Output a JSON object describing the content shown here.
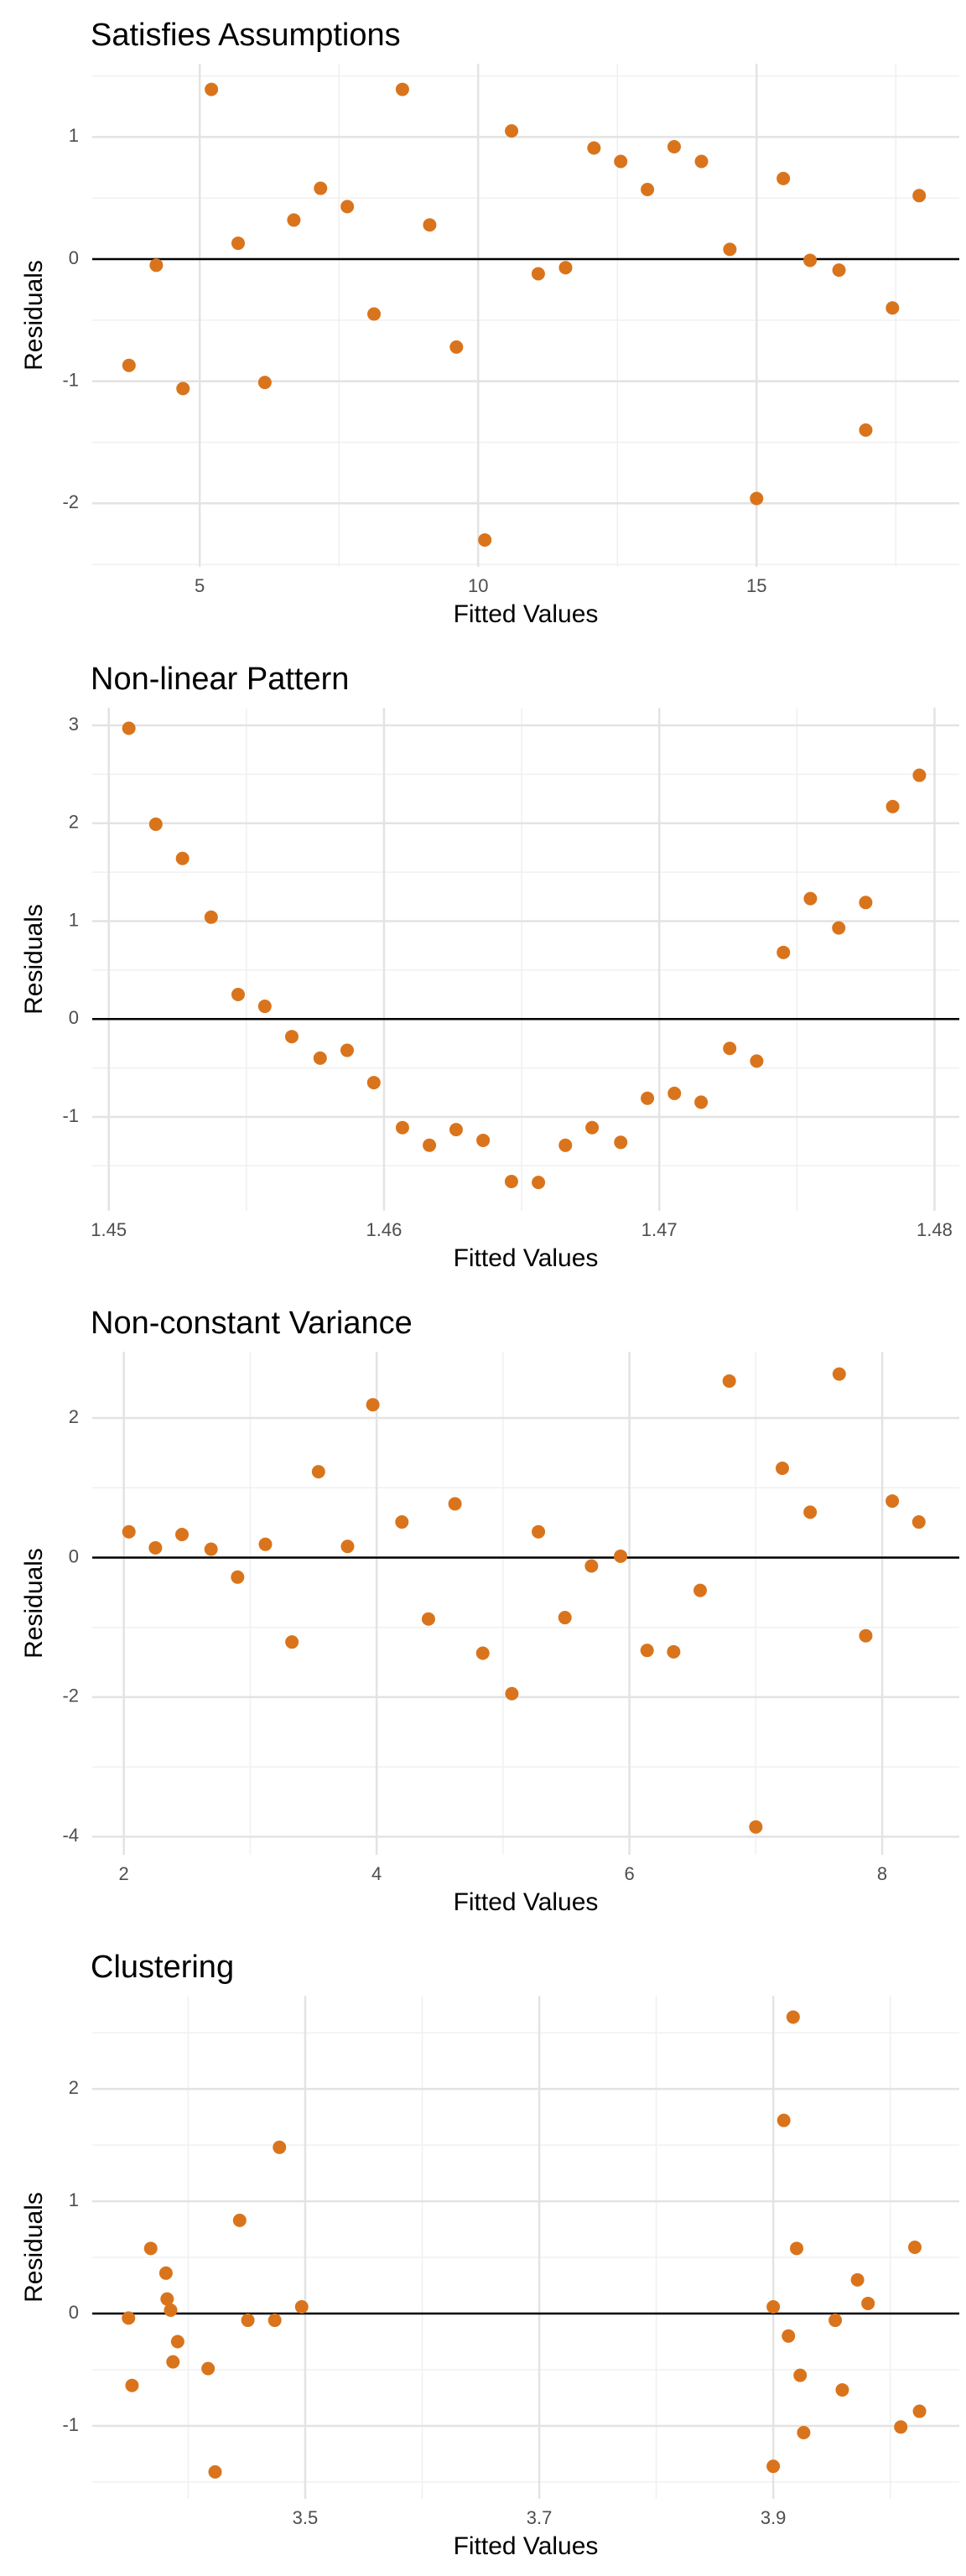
{
  "chart_data": [
    {
      "type": "scatter",
      "title": "Satisfies Assumptions",
      "x_label": "Fitted Values",
      "y_label": "Residuals",
      "color": "#d9741c",
      "grid": true,
      "hline": 0,
      "x": [
        3.73,
        4.22,
        4.7,
        5.21,
        5.69,
        6.17,
        6.69,
        7.17,
        7.65,
        8.13,
        8.64,
        9.13,
        9.61,
        10.12,
        10.6,
        11.08,
        11.57,
        12.08,
        12.56,
        13.04,
        13.52,
        14.01,
        14.52,
        15.0,
        15.48,
        15.96,
        16.48,
        16.96,
        17.44,
        17.92
      ],
      "values": [
        -0.87,
        -0.05,
        -1.06,
        1.39,
        0.13,
        -1.01,
        0.32,
        0.58,
        0.43,
        -0.45,
        1.39,
        0.28,
        -0.72,
        -2.3,
        1.05,
        -0.12,
        -0.07,
        0.91,
        0.8,
        0.57,
        0.92,
        0.8,
        0.08,
        -1.96,
        0.66,
        -0.01,
        -0.09,
        -1.4,
        -0.4,
        0.52
      ],
      "xlim": [
        3.07,
        18.64
      ],
      "ylim": [
        -2.52,
        1.6
      ],
      "xticks": [
        5,
        10,
        15
      ],
      "yticks": [
        -2,
        -1,
        0,
        1
      ],
      "x_minor_ticks": [
        7.5,
        12.5,
        17.5
      ],
      "y_minor_ticks": [
        -2.5,
        -1.5,
        -0.5,
        0.5,
        1.5
      ]
    },
    {
      "type": "scatter",
      "title": "Non-linear Pattern",
      "x_label": "Fitted Values",
      "y_label": "Residuals",
      "color": "#d9741c",
      "grid": true,
      "hline": 0,
      "x": [
        1.45073,
        1.45171,
        1.45268,
        1.45372,
        1.4547,
        1.45567,
        1.45665,
        1.45768,
        1.45866,
        1.45963,
        1.46067,
        1.46165,
        1.46262,
        1.4636,
        1.46463,
        1.46561,
        1.46659,
        1.46756,
        1.4686,
        1.46957,
        1.47055,
        1.47152,
        1.47256,
        1.47354,
        1.47451,
        1.47549,
        1.47652,
        1.4775,
        1.47848,
        1.47945
      ],
      "values": [
        2.97,
        1.99,
        1.64,
        1.04,
        0.25,
        0.13,
        -0.18,
        -0.4,
        -0.32,
        -0.65,
        -1.11,
        -1.29,
        -1.13,
        -1.24,
        -1.66,
        -1.67,
        -1.29,
        -1.11,
        -1.26,
        -0.81,
        -0.76,
        -0.85,
        -0.3,
        -0.43,
        0.68,
        1.23,
        0.93,
        1.19,
        2.17,
        2.49
      ],
      "xlim": [
        1.4494,
        1.4809
      ],
      "ylim": [
        -1.96,
        3.18
      ],
      "xticks": [
        1.45,
        1.46,
        1.47,
        1.48
      ],
      "yticks": [
        -1,
        0,
        1,
        2,
        3
      ],
      "x_minor_ticks": [
        1.455,
        1.465,
        1.475
      ],
      "y_minor_ticks": [
        -1.5,
        -0.5,
        0.5,
        1.5,
        2.5
      ]
    },
    {
      "type": "scatter",
      "title": "Non-constant Variance",
      "x_label": "Fitted Values",
      "y_label": "Residuals",
      "color": "#d9741c",
      "grid": true,
      "hline": 0,
      "x": [
        2.04,
        2.25,
        2.46,
        2.69,
        2.9,
        3.12,
        3.33,
        3.54,
        3.77,
        3.97,
        4.2,
        4.41,
        4.62,
        4.84,
        5.07,
        5.28,
        5.49,
        5.7,
        5.93,
        6.14,
        6.35,
        6.56,
        6.79,
        7.0,
        7.21,
        7.43,
        7.66,
        7.87,
        8.08,
        8.29
      ],
      "values": [
        0.37,
        0.14,
        0.33,
        0.12,
        -0.28,
        0.19,
        -1.21,
        1.23,
        0.16,
        2.19,
        0.51,
        -0.88,
        0.77,
        -1.37,
        -1.95,
        0.37,
        -0.86,
        -0.12,
        0.02,
        -1.33,
        -1.35,
        -0.47,
        2.53,
        -3.86,
        1.28,
        0.65,
        2.63,
        -1.12,
        0.81,
        0.51
      ],
      "xlim": [
        1.75,
        8.61
      ],
      "ylim": [
        -4.26,
        2.95
      ],
      "xticks": [
        2,
        4,
        6,
        8
      ],
      "yticks": [
        -4,
        -2,
        0,
        2
      ],
      "x_minor_ticks": [
        3,
        5,
        7
      ],
      "y_minor_ticks": [
        -3,
        -1,
        1
      ]
    },
    {
      "type": "scatter",
      "title": "Clustering",
      "x_label": "Fitted Values",
      "y_label": "Residuals",
      "color": "#d9741c",
      "grid": true,
      "hline": 0,
      "x": [
        3.349,
        3.352,
        3.368,
        3.381,
        3.382,
        3.385,
        3.391,
        3.387,
        3.417,
        3.423,
        3.444,
        3.451,
        3.474,
        3.478,
        3.497,
        3.9,
        3.9,
        3.909,
        3.913,
        3.917,
        3.92,
        3.923,
        3.926,
        3.953,
        3.959,
        3.972,
        3.981,
        4.009,
        4.021,
        4.025
      ],
      "values": [
        -0.04,
        -0.64,
        0.58,
        0.36,
        0.13,
        0.03,
        -0.25,
        -0.43,
        -0.49,
        -1.41,
        0.83,
        -0.06,
        -0.06,
        1.48,
        0.06,
        0.06,
        -1.36,
        1.72,
        -0.2,
        2.64,
        0.58,
        -0.55,
        -1.06,
        -0.06,
        -0.68,
        0.3,
        0.09,
        -1.01,
        0.59,
        -0.87
      ],
      "xlim": [
        3.318,
        4.059
      ],
      "ylim": [
        -1.65,
        2.83
      ],
      "xticks": [
        3.5,
        3.7,
        3.9
      ],
      "yticks": [
        -1,
        0,
        1,
        2
      ],
      "x_minor_ticks": [
        3.4,
        3.6,
        3.8,
        4.0
      ],
      "y_minor_ticks": [
        -1.5,
        -0.5,
        0.5,
        1.5,
        2.5
      ]
    }
  ]
}
